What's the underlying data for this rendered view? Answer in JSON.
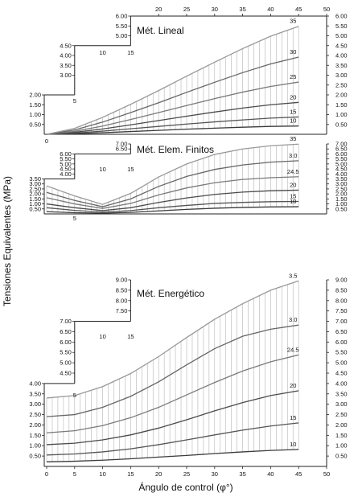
{
  "chart_data": [
    {
      "type": "line",
      "title": "Mét. Lineal",
      "xlim": [
        0,
        45
      ],
      "ylim": [
        0,
        6.0
      ],
      "right_ticks": [
        "0.50",
        "1.00",
        "1.50",
        "2.00",
        "2.50",
        "3.00",
        "3.50",
        "4.00",
        "4.50",
        "5.00",
        "5.50",
        "6.00"
      ],
      "step_ticks": [
        {
          "x": 5,
          "labels": [
            "0.50",
            "1.00",
            "1.50",
            "2.00"
          ]
        },
        {
          "x": 15,
          "labels": [
            "3.00",
            "3.50",
            "4.00",
            "4.50"
          ]
        },
        {
          "x": 45,
          "labels": [
            "5.00",
            "5.50",
            "6.00"
          ]
        }
      ],
      "step_xlabels": [
        "0",
        "5",
        "10",
        "15",
        "20",
        "25",
        "30",
        "35",
        "40",
        "45",
        "50"
      ],
      "series": [
        {
          "name": "10",
          "values": [
            0.0,
            0.03,
            0.08,
            0.14,
            0.2,
            0.26,
            0.31,
            0.36,
            0.4,
            0.42
          ]
        },
        {
          "name": "15",
          "values": [
            0.0,
            0.06,
            0.16,
            0.28,
            0.4,
            0.52,
            0.63,
            0.73,
            0.82,
            0.88
          ]
        },
        {
          "name": "20",
          "values": [
            0.0,
            0.1,
            0.27,
            0.48,
            0.7,
            0.92,
            1.13,
            1.33,
            1.5,
            1.62
          ]
        },
        {
          "name": "25",
          "values": [
            0.0,
            0.15,
            0.42,
            0.75,
            1.1,
            1.46,
            1.81,
            2.14,
            2.43,
            2.65
          ]
        },
        {
          "name": "30",
          "values": [
            0.0,
            0.22,
            0.62,
            1.1,
            1.6,
            2.13,
            2.64,
            3.13,
            3.57,
            3.92
          ]
        },
        {
          "name": "35",
          "values": [
            0.0,
            0.3,
            0.86,
            1.52,
            2.22,
            2.95,
            3.66,
            4.35,
            4.98,
            5.48
          ]
        }
      ],
      "x": [
        0,
        5,
        10,
        15,
        20,
        25,
        30,
        35,
        40,
        45
      ]
    },
    {
      "type": "line",
      "title": "Mét. Elem. Finitos",
      "xlim": [
        0,
        45
      ],
      "ylim": [
        0,
        7.0
      ],
      "right_ticks": [
        "0.50",
        "1.00",
        "1.50",
        "2.00",
        "2.50",
        "3.00",
        "3.50",
        "4.00",
        "4.50",
        "5.00",
        "5.50",
        "6.00",
        "6.50",
        "7.00"
      ],
      "step_ticks": [
        {
          "x": 5,
          "labels": [
            "0.50",
            "1.00",
            "1.50",
            "2.00",
            "2.50",
            "3.00",
            "3.50"
          ]
        },
        {
          "x": 15,
          "labels": [
            "4.00",
            "4.50",
            "5.00",
            "5.50",
            "6.00"
          ]
        },
        {
          "x": 45,
          "labels": [
            "6.50",
            "7.00"
          ]
        }
      ],
      "step_xlabels": [
        "0",
        "5",
        "10",
        "15"
      ],
      "series": [
        {
          "name": "10",
          "values": [
            0.22,
            0.12,
            0.08,
            0.15,
            0.3,
            0.45,
            0.57,
            0.65,
            0.7,
            0.72
          ]
        },
        {
          "name": "15",
          "values": [
            0.62,
            0.35,
            0.18,
            0.33,
            0.62,
            0.85,
            1.05,
            1.15,
            1.22,
            1.25
          ]
        },
        {
          "name": "20",
          "values": [
            1.0,
            0.62,
            0.33,
            0.62,
            1.15,
            1.6,
            1.95,
            2.18,
            2.32,
            2.38
          ]
        },
        {
          "name": "24.5",
          "values": [
            1.62,
            1.0,
            0.55,
            1.05,
            1.9,
            2.6,
            3.12,
            3.45,
            3.62,
            3.72
          ]
        },
        {
          "name": "3.0",
          "values": [
            2.15,
            1.35,
            0.72,
            1.5,
            2.75,
            3.75,
            4.45,
            4.9,
            5.18,
            5.32
          ]
        },
        {
          "name": "35",
          "values": [
            2.8,
            1.8,
            0.95,
            2.05,
            3.7,
            5.0,
            5.95,
            6.5,
            6.82,
            6.98
          ]
        }
      ],
      "x": [
        0,
        5,
        10,
        15,
        20,
        25,
        30,
        35,
        40,
        45
      ]
    },
    {
      "type": "line",
      "title": "Mét. Energético",
      "xlim": [
        0,
        45
      ],
      "ylim": [
        0,
        9.0
      ],
      "right_ticks": [
        "0.50",
        "1.00",
        "1.50",
        "2.00",
        "2.50",
        "3.00",
        "3.50",
        "4.00",
        "4.50",
        "5.00",
        "5.50",
        "6.00",
        "6.50",
        "7.00",
        "7.50",
        "8.00",
        "8.50",
        "9.00"
      ],
      "step_ticks": [
        {
          "x": 5,
          "labels": [
            "0.50",
            "1.00",
            "1.50",
            "2.00",
            "2.50",
            "3.00",
            "3.50",
            "4.00"
          ]
        },
        {
          "x": 15,
          "labels": [
            "4.50",
            "5.00",
            "5.50",
            "6.00",
            "6.50",
            "7.00"
          ]
        },
        {
          "x": 45,
          "labels": [
            "7.50",
            "8.00",
            "8.50",
            "9.00"
          ]
        }
      ],
      "step_xlabels": [
        "10",
        "15"
      ],
      "series": [
        {
          "name": "10",
          "values": [
            0.22,
            0.25,
            0.3,
            0.37,
            0.45,
            0.53,
            0.62,
            0.7,
            0.77,
            0.82
          ]
        },
        {
          "name": "15",
          "values": [
            0.55,
            0.6,
            0.7,
            0.85,
            1.05,
            1.28,
            1.52,
            1.75,
            1.95,
            2.1
          ]
        },
        {
          "name": "20",
          "values": [
            1.05,
            1.12,
            1.28,
            1.52,
            1.85,
            2.25,
            2.68,
            3.08,
            3.42,
            3.65
          ]
        },
        {
          "name": "24.5",
          "values": [
            1.62,
            1.72,
            1.97,
            2.35,
            2.85,
            3.45,
            4.05,
            4.6,
            5.05,
            5.38
          ]
        },
        {
          "name": "3.0",
          "values": [
            2.4,
            2.5,
            2.85,
            3.38,
            4.08,
            4.9,
            5.68,
            6.28,
            6.62,
            6.82
          ]
        },
        {
          "name": "3.5",
          "values": [
            3.3,
            3.42,
            3.85,
            4.48,
            5.3,
            6.22,
            7.1,
            7.85,
            8.5,
            8.95
          ]
        }
      ],
      "x": [
        0,
        5,
        10,
        15,
        20,
        25,
        30,
        35,
        40,
        45
      ]
    }
  ],
  "axes": {
    "ylabel": "Tensiones Equivalentes (MPa)",
    "xlabel": "Ángulo de control (φ°)",
    "bottom_xticks": [
      "0",
      "5",
      "10",
      "15",
      "20",
      "25",
      "30",
      "35",
      "40",
      "45",
      "50"
    ],
    "top_xticks": [
      "20",
      "25",
      "30",
      "35",
      "40",
      "45",
      "50"
    ],
    "top_step_xticks": [
      "10",
      "15"
    ]
  },
  "colors": {
    "series": [
      "#3a3a3a",
      "#555555",
      "#4a4a4a",
      "#7a7a7a",
      "#666666",
      "#999999"
    ],
    "hatch": "#b5b5b5",
    "axis": "#222222"
  }
}
